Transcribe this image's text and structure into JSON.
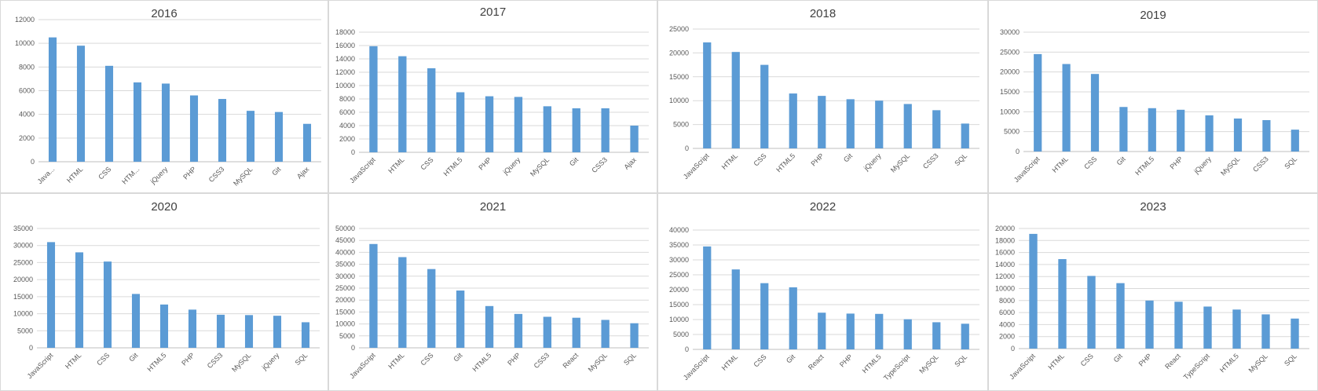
{
  "chart_data": [
    {
      "type": "bar",
      "title": "2016",
      "categories": [
        "Java...",
        "HTML",
        "CSS",
        "HTM...",
        "jQuery",
        "PHP",
        "CSS3",
        "MySQL",
        "Git",
        "Ajax"
      ],
      "values": [
        10500,
        9800,
        8100,
        6700,
        6600,
        5600,
        5300,
        4300,
        4200,
        3200
      ],
      "ylim": [
        0,
        12000
      ],
      "yticks": [
        0,
        2000,
        4000,
        6000,
        8000,
        10000,
        12000
      ],
      "grid": true,
      "legend": "none",
      "bar_color": "#5b9bd5"
    },
    {
      "type": "bar",
      "title": "2017",
      "categories": [
        "JavaScript",
        "HTML",
        "CSS",
        "HTML5",
        "PHP",
        "jQuery",
        "MySQL",
        "Git",
        "CSS3",
        "Ajax"
      ],
      "values": [
        15900,
        14400,
        12600,
        9000,
        8400,
        8300,
        6900,
        6600,
        6600,
        4000
      ],
      "ylim": [
        0,
        18000
      ],
      "yticks": [
        0,
        2000,
        4000,
        6000,
        8000,
        10000,
        12000,
        14000,
        16000,
        18000
      ],
      "grid": true,
      "legend": "none",
      "bar_color": "#5b9bd5"
    },
    {
      "type": "bar",
      "title": "2018",
      "categories": [
        "JavaScript",
        "HTML",
        "CSS",
        "HTML5",
        "PHP",
        "Git",
        "jQuery",
        "MySQL",
        "CSS3",
        "SQL"
      ],
      "values": [
        22200,
        20200,
        17500,
        11500,
        11000,
        10300,
        10000,
        9300,
        8000,
        5200
      ],
      "ylim": [
        0,
        25000
      ],
      "yticks": [
        0,
        5000,
        10000,
        15000,
        20000,
        25000
      ],
      "grid": true,
      "legend": "none",
      "bar_color": "#5b9bd5"
    },
    {
      "type": "bar",
      "title": "2019",
      "categories": [
        "JavaScript",
        "HTML",
        "CSS",
        "Git",
        "HTML5",
        "PHP",
        "jQuery",
        "MySQL",
        "CSS3",
        "SQL"
      ],
      "values": [
        24500,
        22000,
        19500,
        11200,
        10900,
        10500,
        9100,
        8300,
        7900,
        5500
      ],
      "ylim": [
        0,
        30000
      ],
      "yticks": [
        0,
        5000,
        10000,
        15000,
        20000,
        25000,
        30000
      ],
      "grid": true,
      "legend": "none",
      "bar_color": "#5b9bd5"
    },
    {
      "type": "bar",
      "title": "2020",
      "categories": [
        "JavaScript",
        "HTML",
        "CSS",
        "Git",
        "HTML5",
        "PHP",
        "CSS3",
        "MySQL",
        "jQuery",
        "SQL"
      ],
      "values": [
        31000,
        28000,
        25300,
        15800,
        12700,
        11200,
        9700,
        9600,
        9400,
        7500
      ],
      "ylim": [
        0,
        35000
      ],
      "yticks": [
        0,
        5000,
        10000,
        15000,
        20000,
        25000,
        30000,
        35000
      ],
      "grid": true,
      "legend": "none",
      "bar_color": "#5b9bd5"
    },
    {
      "type": "bar",
      "title": "2021",
      "categories": [
        "JavaScript",
        "HTML",
        "CSS",
        "Git",
        "HTML5",
        "PHP",
        "CSS3",
        "React",
        "MySQL",
        "SQL"
      ],
      "values": [
        43500,
        38000,
        33000,
        24000,
        17500,
        14200,
        13000,
        12600,
        11700,
        10300
      ],
      "ylim": [
        0,
        50000
      ],
      "yticks": [
        0,
        5000,
        10000,
        15000,
        20000,
        25000,
        30000,
        35000,
        40000,
        45000,
        50000
      ],
      "grid": true,
      "legend": "none",
      "bar_color": "#5b9bd5"
    },
    {
      "type": "bar",
      "title": "2022",
      "categories": [
        "JavaScript",
        "HTML",
        "CSS",
        "Git",
        "React",
        "PHP",
        "HTML5",
        "TypeScript",
        "MySQL",
        "SQL"
      ],
      "values": [
        34500,
        26800,
        22200,
        20800,
        12300,
        12000,
        11900,
        10100,
        9100,
        8600
      ],
      "ylim": [
        0,
        40000
      ],
      "yticks": [
        0,
        5000,
        10000,
        15000,
        20000,
        25000,
        30000,
        35000,
        40000
      ],
      "grid": true,
      "legend": "none",
      "bar_color": "#5b9bd5"
    },
    {
      "type": "bar",
      "title": "2023",
      "categories": [
        "JavaScript",
        "HTML",
        "CSS",
        "Git",
        "PHP",
        "React",
        "TypeScript",
        "HTML5",
        "MySQL",
        "SQL"
      ],
      "values": [
        19100,
        14900,
        12100,
        10900,
        8000,
        7800,
        7000,
        6500,
        5700,
        5000
      ],
      "ylim": [
        0,
        20000
      ],
      "yticks": [
        0,
        2000,
        4000,
        6000,
        8000,
        10000,
        12000,
        14000,
        16000,
        18000,
        20000
      ],
      "grid": true,
      "legend": "none",
      "bar_color": "#5b9bd5"
    }
  ]
}
